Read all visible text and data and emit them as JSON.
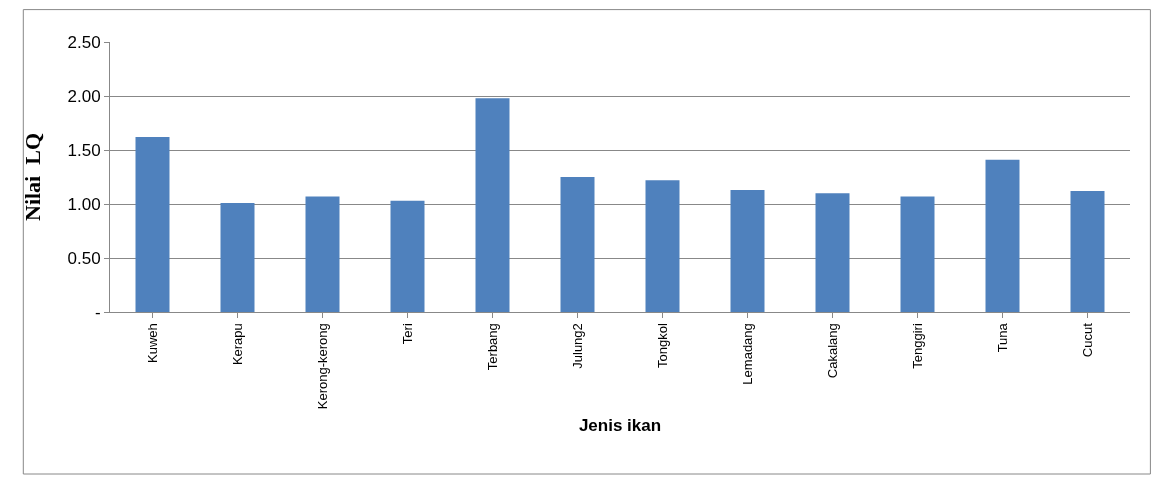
{
  "chart_data": {
    "type": "bar",
    "xlabel": "Jenis ikan",
    "ylabel": "Nilai  LQ",
    "categories": [
      "Kuweh",
      "Kerapu",
      "Kerong-kerong",
      "Teri",
      "Terbang",
      "Julung2",
      "Tongkol",
      "Lemadang",
      "Cakalang",
      "Tenggiri",
      "Tuna",
      "Cucut"
    ],
    "values": [
      1.62,
      1.01,
      1.07,
      1.03,
      1.98,
      1.25,
      1.22,
      1.13,
      1.1,
      1.07,
      1.41,
      1.12
    ],
    "color": "#4f81bd",
    "ylim": [
      0,
      2.5
    ],
    "yticks": [
      {
        "value": 0,
        "label": "-"
      },
      {
        "value": 0.5,
        "label": "0.50"
      },
      {
        "value": 1,
        "label": "1.00"
      },
      {
        "value": 1.5,
        "label": "1.50"
      },
      {
        "value": 2,
        "label": "2.00"
      },
      {
        "value": 2.5,
        "label": "2.50"
      }
    ],
    "grid": "y",
    "legend": false
  }
}
